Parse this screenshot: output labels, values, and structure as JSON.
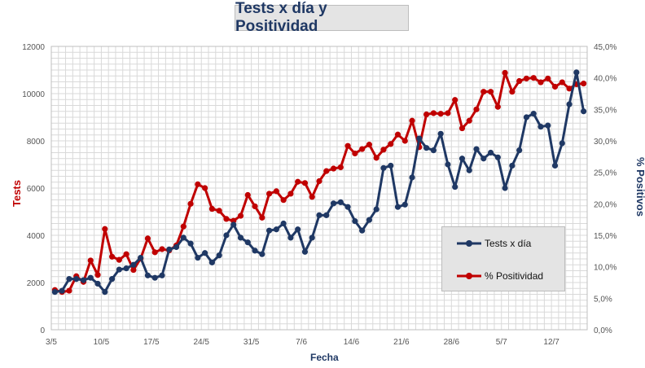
{
  "chart_data": {
    "type": "line",
    "title": "Tests x día y Positividad",
    "xlabel": "Fecha",
    "ylabel_left": "Tests",
    "ylabel_right": "% Positivos",
    "ylim_left": [
      0,
      12000
    ],
    "ylim_right": [
      0,
      45
    ],
    "yticks_left": [
      "0",
      "2000",
      "4000",
      "6000",
      "8000",
      "10000",
      "12000"
    ],
    "yticks_right": [
      "0,0%",
      "5,0%",
      "10,0%",
      "15,0%",
      "20,0%",
      "25,0%",
      "30,0%",
      "35,0%",
      "40,0%",
      "45,0%"
    ],
    "xtick_labels": [
      "3/5",
      "10/5",
      "17/5",
      "24/5",
      "31/5",
      "7/6",
      "14/6",
      "21/6",
      "28/6",
      "5/7",
      "12/7"
    ],
    "x_start_date": "3/5",
    "legend_position": "bottom-right",
    "grid": true,
    "colors": {
      "tests": "#1f3864",
      "positividad": "#c00000",
      "title": "#1f3864"
    },
    "series": [
      {
        "name": "Tests x día",
        "axis": "left",
        "values": [
          1600,
          1650,
          2150,
          2150,
          2100,
          2200,
          1950,
          1600,
          2150,
          2550,
          2600,
          2750,
          3050,
          2300,
          2200,
          2300,
          3400,
          3500,
          3900,
          3650,
          3050,
          3250,
          2850,
          3150,
          4000,
          4450,
          3900,
          3700,
          3350,
          3200,
          4200,
          4250,
          4500,
          3900,
          4250,
          3300,
          3900,
          4850,
          4850,
          5350,
          5400,
          5200,
          4600,
          4200,
          4650,
          5100,
          6850,
          6950,
          5200,
          5300,
          6450,
          8100,
          7700,
          7600,
          8300,
          7000,
          6050,
          7250,
          6750,
          7650,
          7250,
          7500,
          7300,
          6000,
          6950,
          7600,
          9000,
          9150,
          8600,
          8650,
          6950,
          7900,
          9550,
          10900,
          9250
        ]
      },
      {
        "name": "% Positividad",
        "axis": "right",
        "values": [
          6.3,
          6.0,
          6.2,
          8.5,
          7.6,
          11.0,
          8.7,
          16.0,
          11.6,
          11.1,
          12.0,
          9.5,
          11.3,
          14.5,
          12.3,
          12.8,
          12.6,
          13.4,
          16.4,
          20.0,
          23.1,
          22.5,
          19.2,
          18.9,
          17.6,
          17.3,
          18.1,
          21.4,
          19.6,
          17.8,
          21.6,
          22.0,
          20.6,
          21.6,
          23.5,
          23.3,
          21.1,
          23.6,
          25.2,
          25.6,
          25.8,
          29.2,
          28.0,
          28.7,
          29.4,
          27.3,
          28.6,
          29.5,
          31.0,
          30.0,
          33.2,
          29.0,
          34.2,
          34.4,
          34.3,
          34.4,
          36.5,
          32.0,
          33.2,
          35.0,
          37.8,
          37.8,
          35.4,
          40.8,
          37.8,
          39.5,
          39.9,
          40.0,
          39.3,
          39.9,
          38.6,
          39.3,
          38.3,
          39.0,
          39.1
        ]
      }
    ]
  }
}
